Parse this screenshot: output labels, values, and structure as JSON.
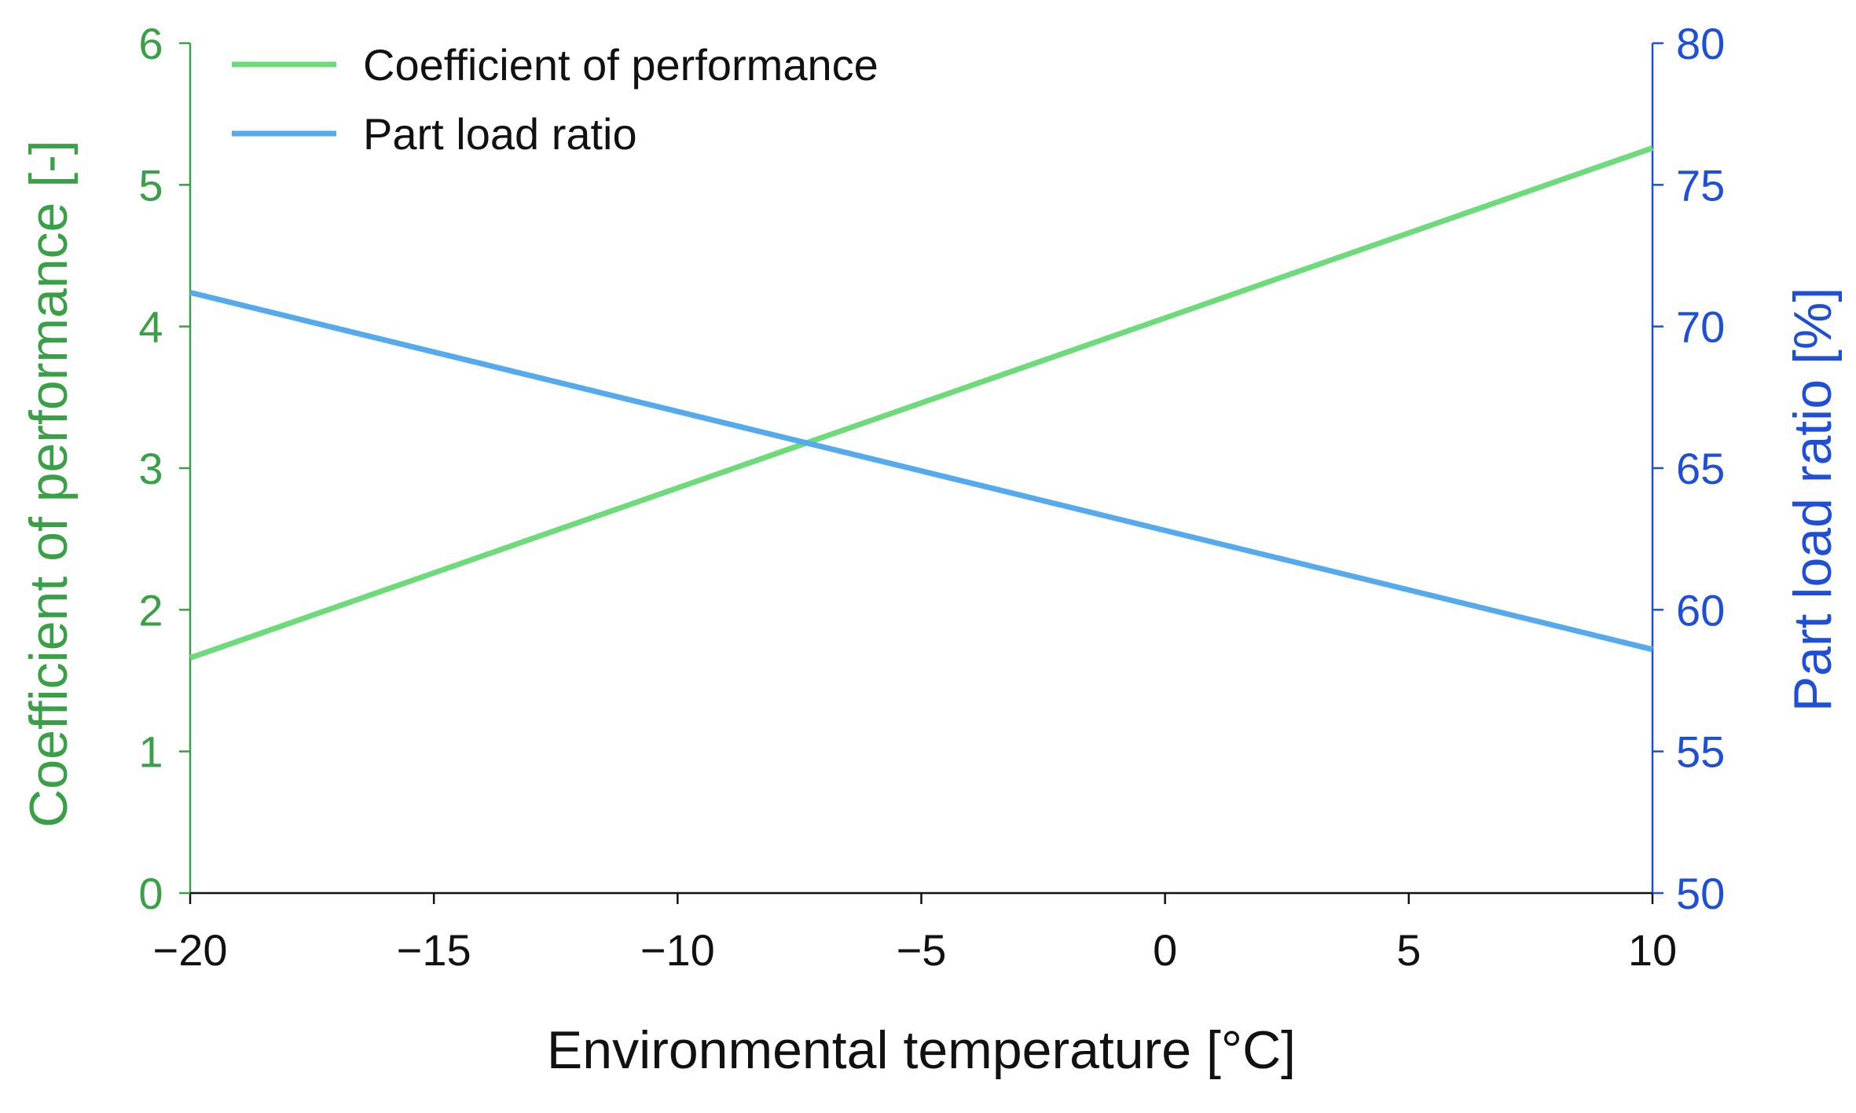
{
  "chart_data": {
    "type": "line",
    "title": "",
    "xlabel": "Environmental temperature [°C]",
    "ylabel_left": "Coefficient of performance [-]",
    "ylabel_right": "Part load ratio [%]",
    "xlim": [
      -20,
      10
    ],
    "ylim_left": [
      0,
      6
    ],
    "ylim_right": [
      50,
      80
    ],
    "x_ticks": [
      -20,
      -15,
      -10,
      -5,
      0,
      5,
      10
    ],
    "x_tick_labels": [
      "−20",
      "−15",
      "−10",
      "−5",
      "0",
      "5",
      "10"
    ],
    "y_left_ticks": [
      0,
      1,
      2,
      3,
      4,
      5,
      6
    ],
    "y_left_tick_labels": [
      "0",
      "1",
      "2",
      "3",
      "4",
      "5",
      "6"
    ],
    "y_right_ticks": [
      50,
      55,
      60,
      65,
      70,
      75,
      80
    ],
    "y_right_tick_labels": [
      "50",
      "55",
      "60",
      "65",
      "70",
      "75",
      "80"
    ],
    "grid": false,
    "legend_position": "top-left",
    "series": [
      {
        "name": "Coefficient of performance",
        "axis": "left",
        "color": "#6ddb7a",
        "x": [
          -20,
          10
        ],
        "y": [
          1.66,
          5.26
        ]
      },
      {
        "name": "Part load ratio",
        "axis": "right",
        "color": "#55aaee",
        "x": [
          -20,
          10
        ],
        "y": [
          71.2,
          58.6
        ]
      }
    ],
    "colors": {
      "left_axis": "#3aa048",
      "right_axis": "#1f4fd6",
      "bottom_axis": "#111111"
    }
  }
}
